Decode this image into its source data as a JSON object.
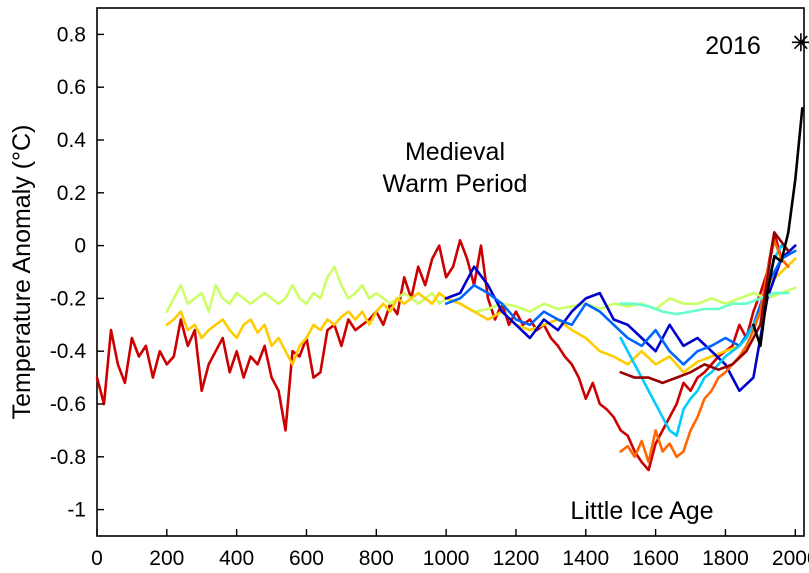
{
  "chart_data": {
    "type": "line",
    "title": "",
    "xlabel": "",
    "ylabel": "Temperature Anomaly (°C)",
    "xlim": [
      0,
      2025
    ],
    "ylim": [
      -1.1,
      0.9
    ],
    "grid": false,
    "x_ticks": [
      0,
      200,
      400,
      600,
      800,
      1000,
      1200,
      1400,
      1600,
      1800,
      2000
    ],
    "y_ticks": [
      0.8,
      0.6,
      0.4,
      0.2,
      0,
      -0.2,
      -0.4,
      -0.6,
      -0.8,
      -1
    ],
    "y_tick_labels": [
      "0.8",
      "0.6",
      "0.4",
      "0.2",
      "0",
      "-0.2",
      "-0.4",
      "-0.6",
      "-0.8",
      "-1"
    ],
    "annotations": [
      {
        "text": "Medieval",
        "x": 1050,
        "y": 0.33
      },
      {
        "text": "Warm Period",
        "x": 1050,
        "y": 0.22
      },
      {
        "text": "Little Ice Age",
        "x": 1690,
        "y": -0.99
      },
      {
        "text": "2016",
        "x": 1850,
        "y": 0.77
      }
    ],
    "marker": {
      "text": "2016",
      "x": 2016,
      "y": 0.77,
      "symbol": "asterisk"
    },
    "series": [
      {
        "color": "#cc0000",
        "x": [
          0,
          20,
          40,
          60,
          80,
          100,
          120,
          140,
          160,
          180,
          200,
          220,
          240,
          260,
          280,
          300,
          320,
          340,
          360,
          380,
          400,
          420,
          440,
          460,
          480,
          500,
          520,
          540,
          560,
          580,
          600,
          620,
          640,
          660,
          680,
          700,
          720,
          740,
          760,
          780,
          800,
          820,
          840,
          860,
          880,
          900,
          920,
          940,
          960,
          980,
          1000,
          1020,
          1040,
          1060,
          1080,
          1100,
          1120,
          1140,
          1160,
          1180,
          1200,
          1220,
          1240,
          1260,
          1280,
          1300,
          1320,
          1340,
          1360,
          1380,
          1400,
          1420,
          1440,
          1460,
          1480,
          1500,
          1520,
          1540,
          1560,
          1580,
          1600,
          1620,
          1640,
          1660,
          1680,
          1700,
          1720,
          1740,
          1760,
          1780,
          1800,
          1820,
          1840,
          1860,
          1880,
          1900,
          1920,
          1940,
          1960,
          1980
        ],
        "values": [
          -0.5,
          -0.6,
          -0.32,
          -0.45,
          -0.52,
          -0.35,
          -0.42,
          -0.38,
          -0.5,
          -0.4,
          -0.45,
          -0.42,
          -0.28,
          -0.38,
          -0.32,
          -0.55,
          -0.45,
          -0.4,
          -0.35,
          -0.48,
          -0.4,
          -0.5,
          -0.42,
          -0.45,
          -0.38,
          -0.5,
          -0.55,
          -0.7,
          -0.4,
          -0.42,
          -0.35,
          -0.5,
          -0.48,
          -0.32,
          -0.3,
          -0.38,
          -0.28,
          -0.32,
          -0.3,
          -0.28,
          -0.25,
          -0.3,
          -0.22,
          -0.26,
          -0.12,
          -0.2,
          -0.08,
          -0.15,
          -0.05,
          0.0,
          -0.12,
          -0.08,
          0.02,
          -0.05,
          -0.15,
          0.0,
          -0.2,
          -0.28,
          -0.22,
          -0.3,
          -0.25,
          -0.3,
          -0.28,
          -0.32,
          -0.3,
          -0.35,
          -0.38,
          -0.42,
          -0.45,
          -0.5,
          -0.58,
          -0.52,
          -0.6,
          -0.62,
          -0.65,
          -0.7,
          -0.72,
          -0.78,
          -0.82,
          -0.85,
          -0.75,
          -0.7,
          -0.65,
          -0.6,
          -0.52,
          -0.55,
          -0.5,
          -0.48,
          -0.45,
          -0.42,
          -0.4,
          -0.38,
          -0.3,
          -0.35,
          -0.25,
          -0.18,
          -0.1,
          0.05,
          -0.05,
          -0.08
        ]
      },
      {
        "color": "#ccff66",
        "x": [
          200,
          220,
          240,
          260,
          280,
          300,
          320,
          340,
          360,
          380,
          400,
          420,
          440,
          460,
          480,
          500,
          520,
          540,
          560,
          580,
          600,
          620,
          640,
          660,
          680,
          700,
          720,
          740,
          760,
          780,
          800,
          820,
          840,
          860,
          880,
          900,
          920,
          940,
          960,
          980,
          1000,
          1040,
          1080,
          1120,
          1160,
          1200,
          1240,
          1280,
          1320,
          1360,
          1400,
          1440,
          1480,
          1520,
          1560,
          1600,
          1640,
          1680,
          1720,
          1760,
          1800,
          1840,
          1880,
          1920,
          1960,
          2000
        ],
        "values": [
          -0.25,
          -0.2,
          -0.15,
          -0.22,
          -0.2,
          -0.18,
          -0.25,
          -0.15,
          -0.2,
          -0.22,
          -0.18,
          -0.2,
          -0.22,
          -0.2,
          -0.18,
          -0.2,
          -0.22,
          -0.2,
          -0.15,
          -0.2,
          -0.22,
          -0.18,
          -0.2,
          -0.12,
          -0.08,
          -0.15,
          -0.2,
          -0.18,
          -0.15,
          -0.2,
          -0.18,
          -0.2,
          -0.22,
          -0.2,
          -0.18,
          -0.2,
          -0.22,
          -0.2,
          -0.18,
          -0.22,
          -0.2,
          -0.22,
          -0.25,
          -0.24,
          -0.22,
          -0.23,
          -0.25,
          -0.22,
          -0.24,
          -0.23,
          -0.22,
          -0.24,
          -0.22,
          -0.23,
          -0.22,
          -0.24,
          -0.2,
          -0.22,
          -0.22,
          -0.2,
          -0.22,
          -0.2,
          -0.18,
          -0.2,
          -0.18,
          -0.16
        ]
      },
      {
        "color": "#ffcc00",
        "x": [
          200,
          220,
          240,
          260,
          280,
          300,
          320,
          340,
          360,
          380,
          400,
          420,
          440,
          460,
          480,
          500,
          520,
          540,
          560,
          580,
          600,
          620,
          640,
          660,
          680,
          700,
          720,
          740,
          760,
          780,
          800,
          820,
          840,
          860,
          880,
          900,
          920,
          940,
          960,
          980,
          1000,
          1040,
          1080,
          1120,
          1160,
          1200,
          1240,
          1280,
          1320,
          1360,
          1400,
          1440,
          1480,
          1520,
          1560,
          1600,
          1640,
          1680,
          1720,
          1760,
          1800,
          1840,
          1880,
          1920,
          1960,
          2000
        ],
        "values": [
          -0.3,
          -0.28,
          -0.25,
          -0.32,
          -0.3,
          -0.35,
          -0.32,
          -0.3,
          -0.28,
          -0.32,
          -0.35,
          -0.3,
          -0.28,
          -0.33,
          -0.3,
          -0.38,
          -0.35,
          -0.4,
          -0.45,
          -0.38,
          -0.35,
          -0.3,
          -0.32,
          -0.28,
          -0.3,
          -0.27,
          -0.25,
          -0.28,
          -0.25,
          -0.3,
          -0.25,
          -0.22,
          -0.25,
          -0.2,
          -0.22,
          -0.2,
          -0.18,
          -0.2,
          -0.22,
          -0.18,
          -0.2,
          -0.22,
          -0.25,
          -0.28,
          -0.25,
          -0.3,
          -0.32,
          -0.3,
          -0.28,
          -0.32,
          -0.35,
          -0.4,
          -0.42,
          -0.45,
          -0.4,
          -0.45,
          -0.42,
          -0.48,
          -0.44,
          -0.42,
          -0.4,
          -0.38,
          -0.3,
          -0.15,
          -0.1,
          -0.05
        ]
      },
      {
        "color": "#0000cc",
        "x": [
          1000,
          1040,
          1080,
          1120,
          1160,
          1200,
          1240,
          1280,
          1320,
          1360,
          1400,
          1440,
          1480,
          1520,
          1560,
          1600,
          1640,
          1680,
          1720,
          1760,
          1800,
          1840,
          1880,
          1920,
          1960,
          2000
        ],
        "values": [
          -0.2,
          -0.18,
          -0.08,
          -0.15,
          -0.25,
          -0.3,
          -0.35,
          -0.28,
          -0.32,
          -0.25,
          -0.2,
          -0.18,
          -0.28,
          -0.3,
          -0.35,
          -0.4,
          -0.3,
          -0.38,
          -0.35,
          -0.4,
          -0.45,
          -0.55,
          -0.5,
          -0.2,
          -0.05,
          0.0
        ]
      },
      {
        "color": "#0066ff",
        "x": [
          1000,
          1040,
          1080,
          1120,
          1160,
          1200,
          1240,
          1280,
          1320,
          1360,
          1400,
          1440,
          1480,
          1520,
          1560,
          1600,
          1640,
          1680,
          1720,
          1760,
          1800,
          1840,
          1880,
          1920,
          1960,
          2000
        ],
        "values": [
          -0.22,
          -0.2,
          -0.15,
          -0.18,
          -0.22,
          -0.28,
          -0.3,
          -0.25,
          -0.28,
          -0.3,
          -0.22,
          -0.25,
          -0.3,
          -0.35,
          -0.38,
          -0.32,
          -0.4,
          -0.45,
          -0.4,
          -0.38,
          -0.35,
          -0.38,
          -0.3,
          -0.15,
          -0.05,
          -0.02
        ]
      },
      {
        "color": "#00ccff",
        "x": [
          1500,
          1520,
          1540,
          1560,
          1580,
          1600,
          1620,
          1640,
          1660,
          1680,
          1700,
          1720,
          1740,
          1760,
          1780,
          1800,
          1820,
          1840,
          1860,
          1880,
          1900,
          1920,
          1940,
          1960,
          1980
        ],
        "values": [
          -0.35,
          -0.4,
          -0.45,
          -0.5,
          -0.55,
          -0.6,
          -0.65,
          -0.7,
          -0.72,
          -0.62,
          -0.58,
          -0.55,
          -0.5,
          -0.48,
          -0.45,
          -0.42,
          -0.4,
          -0.38,
          -0.35,
          -0.3,
          -0.25,
          -0.15,
          -0.05,
          0.0,
          -0.02
        ]
      },
      {
        "color": "#ff6600",
        "x": [
          1500,
          1520,
          1540,
          1560,
          1580,
          1600,
          1620,
          1640,
          1660,
          1680,
          1700,
          1720,
          1740,
          1760,
          1780,
          1800,
          1820,
          1840,
          1860,
          1880,
          1900,
          1920,
          1940,
          1960,
          1980
        ],
        "values": [
          -0.78,
          -0.76,
          -0.8,
          -0.74,
          -0.82,
          -0.7,
          -0.78,
          -0.75,
          -0.8,
          -0.78,
          -0.7,
          -0.65,
          -0.58,
          -0.55,
          -0.5,
          -0.48,
          -0.45,
          -0.42,
          -0.38,
          -0.32,
          -0.25,
          -0.1,
          0.02,
          -0.05,
          -0.08
        ]
      },
      {
        "color": "#66ffcc",
        "x": [
          1500,
          1540,
          1580,
          1620,
          1660,
          1700,
          1740,
          1780,
          1820,
          1860,
          1900,
          1940,
          1980
        ],
        "values": [
          -0.22,
          -0.22,
          -0.23,
          -0.25,
          -0.26,
          -0.25,
          -0.24,
          -0.24,
          -0.22,
          -0.22,
          -0.2,
          -0.18,
          -0.18
        ]
      },
      {
        "color": "#990000",
        "x": [
          1500,
          1540,
          1580,
          1620,
          1660,
          1700,
          1740,
          1780,
          1820,
          1860,
          1900,
          1940,
          1980
        ],
        "values": [
          -0.48,
          -0.5,
          -0.5,
          -0.52,
          -0.5,
          -0.48,
          -0.45,
          -0.47,
          -0.45,
          -0.4,
          -0.3,
          0.05,
          -0.02
        ]
      },
      {
        "color": "#000000",
        "x": [
          1880,
          1900,
          1920,
          1940,
          1960,
          1980,
          2000,
          2020
        ],
        "values": [
          -0.3,
          -0.38,
          -0.18,
          -0.04,
          -0.06,
          0.05,
          0.25,
          0.52
        ]
      }
    ]
  }
}
